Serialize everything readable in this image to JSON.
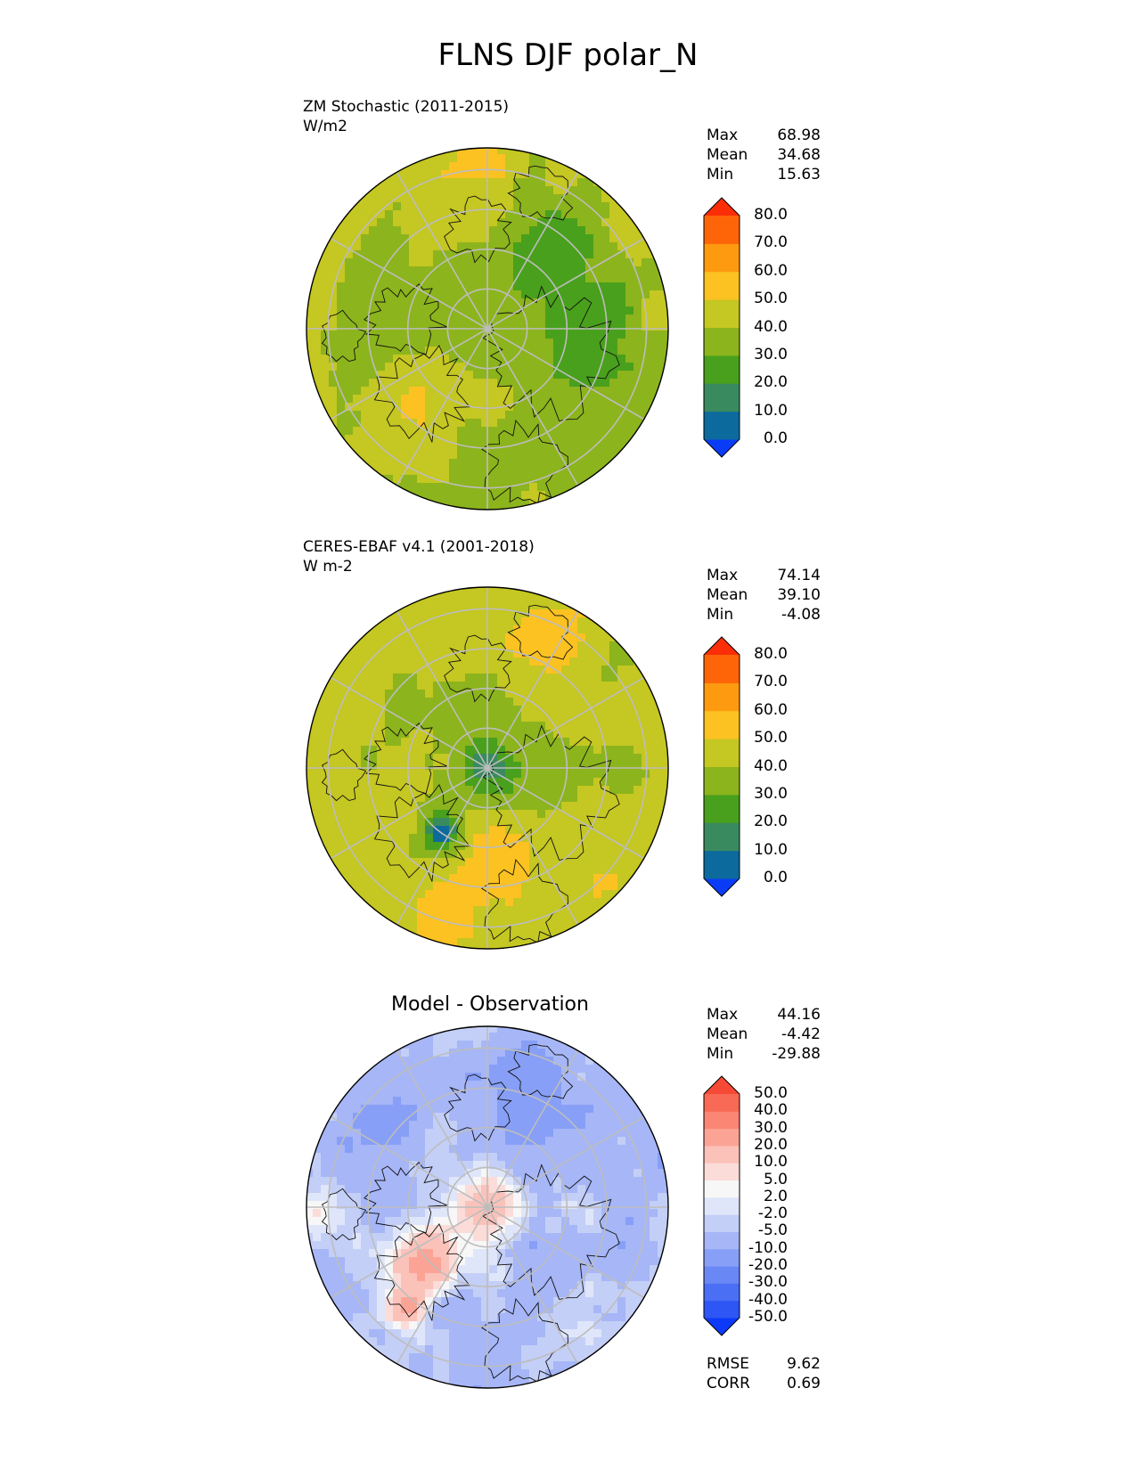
{
  "figure": {
    "title": "FLNS DJF polar_N"
  },
  "panels": [
    {
      "id": "test",
      "title_line1": "ZM Stochastic (2011-2015)",
      "title_line2": "W/m2",
      "stats": [
        {
          "label": "Max",
          "value": "68.98"
        },
        {
          "label": "Mean",
          "value": "34.68"
        },
        {
          "label": "Min",
          "value": "15.63"
        }
      ]
    },
    {
      "id": "reference",
      "title_line1": "CERES-EBAF v4.1 (2001-2018)",
      "title_line2": "W m-2",
      "stats": [
        {
          "label": "Max",
          "value": "74.14"
        },
        {
          "label": "Mean",
          "value": "39.10"
        },
        {
          "label": "Min",
          "value": "-4.08"
        }
      ]
    },
    {
      "id": "diff",
      "title_center": "Model - Observation",
      "stats": [
        {
          "label": "Max",
          "value": "44.16"
        },
        {
          "label": "Mean",
          "value": "-4.42"
        },
        {
          "label": "Min",
          "value": "-29.88"
        }
      ],
      "metrics": [
        {
          "label": "RMSE",
          "value": "9.62"
        },
        {
          "label": "CORR",
          "value": "0.69"
        }
      ]
    }
  ],
  "colorbars": {
    "main": {
      "colors": [
        "#0a3cf7",
        "#0c6a9d",
        "#3a8a60",
        "#49a01c",
        "#8cb41c",
        "#c5c722",
        "#fbc222",
        "#fd9a10",
        "#fd6508",
        "#fb2e08"
      ],
      "ticks": [
        "0.0",
        "10.0",
        "20.0",
        "30.0",
        "40.0",
        "50.0",
        "60.0",
        "70.0",
        "80.0"
      ]
    },
    "diff": {
      "colors": [
        "#0d3af8",
        "#2d56f5",
        "#4a6ff5",
        "#6a88f5",
        "#879ff6",
        "#a6b6f7",
        "#c4cff7",
        "#e0e6fa",
        "#f7f7f7",
        "#fbdcd8",
        "#fbc2ba",
        "#fba496",
        "#fa8673",
        "#f86a55",
        "#f64a36",
        "#f42a12"
      ],
      "ticks": [
        "-50.0",
        "-40.0",
        "-30.0",
        "-20.0",
        "-10.0",
        "-5.0",
        "-2.0",
        "2.0",
        "5.0",
        "10.0",
        "20.0",
        "30.0",
        "40.0",
        "50.0"
      ]
    }
  },
  "chart_data": [
    {
      "type": "heatmap",
      "title": "ZM Stochastic (2011-2015)",
      "units": "W/m2",
      "projection": "north polar stereographic",
      "contour_levels": [
        0,
        10,
        20,
        30,
        40,
        50,
        60,
        70,
        80
      ],
      "max": 68.98,
      "mean": 34.68,
      "min": 15.63
    },
    {
      "type": "heatmap",
      "title": "CERES-EBAF v4.1 (2001-2018)",
      "units": "W m-2",
      "projection": "north polar stereographic",
      "contour_levels": [
        0,
        10,
        20,
        30,
        40,
        50,
        60,
        70,
        80
      ],
      "max": 74.14,
      "mean": 39.1,
      "min": -4.08
    },
    {
      "type": "heatmap",
      "title": "Model - Observation",
      "projection": "north polar stereographic",
      "contour_levels": [
        -50,
        -40,
        -30,
        -20,
        -10,
        -5,
        -2,
        2,
        5,
        10,
        20,
        30,
        40,
        50
      ],
      "max": 44.16,
      "mean": -4.42,
      "min": -29.88,
      "rmse": 9.62,
      "corr": 0.69
    }
  ]
}
